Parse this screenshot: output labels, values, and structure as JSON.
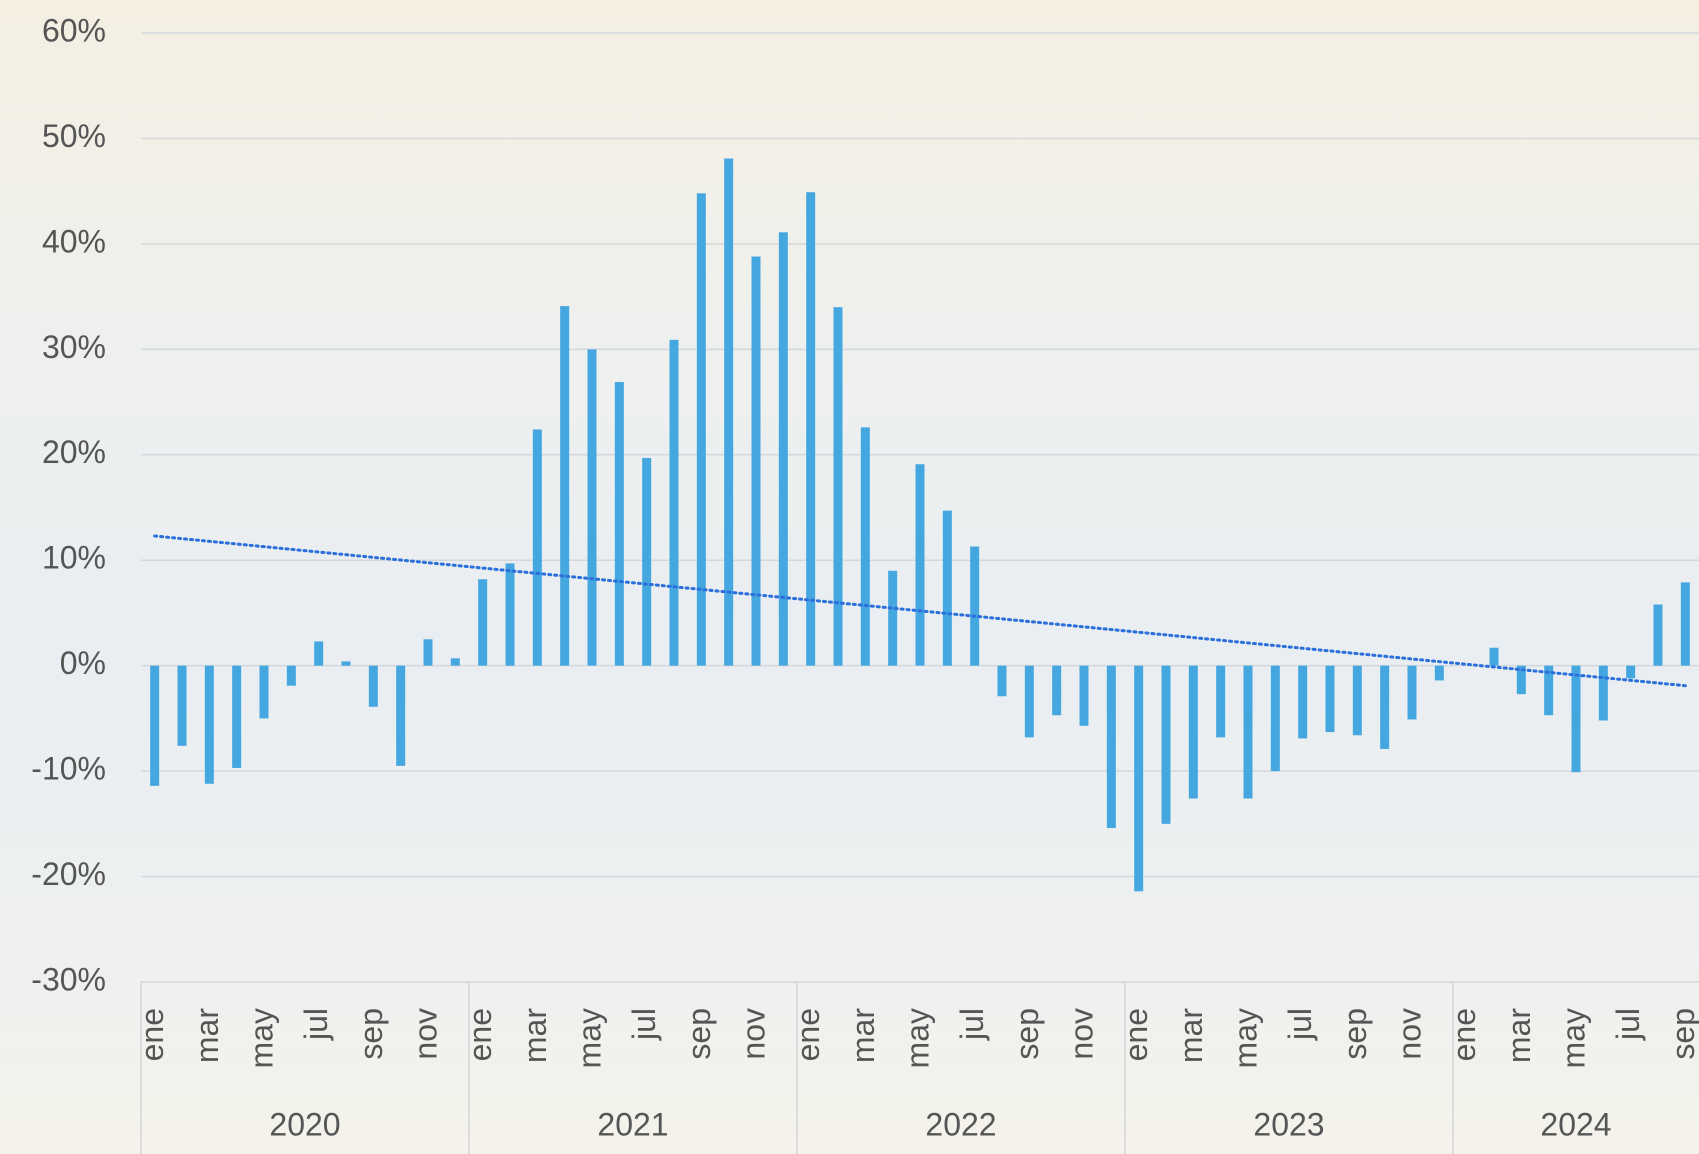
{
  "chart_data": {
    "type": "bar",
    "categories": [
      "ene",
      null,
      "mar",
      null,
      "may",
      null,
      "jul",
      null,
      "sep",
      null,
      "nov",
      null,
      "ene",
      null,
      "mar",
      null,
      "may",
      null,
      "jul",
      null,
      "sep",
      null,
      "nov",
      null,
      "ene",
      null,
      "mar",
      null,
      "may",
      null,
      "jul",
      null,
      "sep",
      null,
      "nov",
      null,
      "ene",
      null,
      "mar",
      null,
      "may",
      null,
      "jul",
      null,
      "sep",
      null,
      "nov",
      null,
      "ene",
      null,
      "mar",
      null,
      "may",
      null,
      "jul",
      null,
      "sep"
    ],
    "years": [
      "2020",
      "2021",
      "2022",
      "2023",
      "2024"
    ],
    "values": [
      -11.4,
      -7.6,
      -11.2,
      -9.7,
      -5.0,
      -1.9,
      2.3,
      0.4,
      -3.9,
      -9.5,
      2.5,
      0.7,
      8.2,
      9.7,
      22.4,
      34.1,
      30.0,
      26.9,
      19.7,
      30.9,
      44.8,
      48.1,
      38.8,
      41.1,
      44.9,
      34.0,
      22.6,
      9.0,
      19.1,
      14.7,
      11.3,
      -2.9,
      -6.8,
      -4.7,
      -5.7,
      -15.4,
      -21.4,
      -15.0,
      -12.6,
      -6.8,
      -12.6,
      -10.0,
      -6.9,
      -6.3,
      -6.6,
      -7.9,
      -5.1,
      -1.4,
      0,
      1.7,
      -2.7,
      -4.7,
      -10.1,
      -5.2,
      -1.2,
      5.8,
      7.9
    ],
    "color": "#45a7e0",
    "trendline": {
      "start": 12.3,
      "end": -1.9,
      "color": "#2a6fdb"
    },
    "ylim": [
      -30,
      60
    ],
    "yticks": [
      {
        "value": -30,
        "label": "-30%"
      },
      {
        "value": -20,
        "label": "-20%"
      },
      {
        "value": -10,
        "label": "-10%"
      },
      {
        "value": 0,
        "label": "0%"
      },
      {
        "value": 10,
        "label": "10%"
      },
      {
        "value": 20,
        "label": "20%"
      },
      {
        "value": 30,
        "label": "30%"
      },
      {
        "value": 40,
        "label": "40%"
      },
      {
        "value": 50,
        "label": "50%"
      },
      {
        "value": 60,
        "label": "60%"
      }
    ],
    "grid": true
  }
}
